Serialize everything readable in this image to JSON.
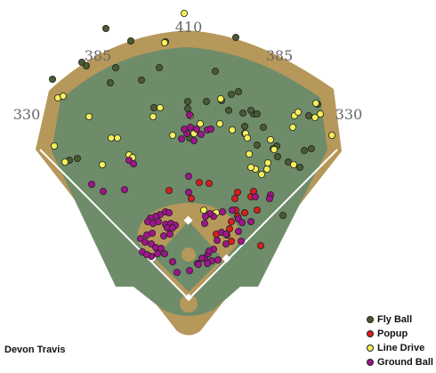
{
  "player_name": "Devon Travis",
  "chart_data": {
    "type": "scatter",
    "title": "",
    "distances": {
      "left_line": "330",
      "left_center": "385",
      "center": "410",
      "right_center": "385",
      "right_line": "330"
    },
    "legend_placement": "bottom-right",
    "series": [
      {
        "name": "Fly Ball",
        "color": "#4a5a32",
        "points": [
          [
            119,
            32
          ],
          [
            147,
            46
          ],
          [
            186,
            47
          ],
          [
            265,
            42
          ],
          [
            92,
            70
          ],
          [
            97,
            74
          ],
          [
            130,
            76
          ],
          [
            179,
            76
          ],
          [
            59,
            89
          ],
          [
            124,
            93
          ],
          [
            159,
            90
          ],
          [
            242,
            80
          ],
          [
            173,
            121
          ],
          [
            211,
            122
          ],
          [
            268,
            103
          ],
          [
            285,
            128
          ],
          [
            282,
            124
          ],
          [
            289,
            128
          ],
          [
            273,
            127
          ],
          [
            249,
            113
          ],
          [
            232,
            114
          ],
          [
            296,
            143
          ],
          [
            257,
            124
          ],
          [
            275,
            142
          ],
          [
            213,
            155
          ],
          [
            289,
            163
          ],
          [
            311,
            164
          ],
          [
            312,
            176
          ],
          [
            324,
            182
          ],
          [
            337,
            188
          ],
          [
            342,
            169
          ],
          [
            350,
            167
          ],
          [
            357,
            117
          ],
          [
            347,
            130
          ],
          [
            87,
            178
          ],
          [
            78,
            180
          ],
          [
            318,
            242
          ],
          [
            260,
            106
          ],
          [
            211,
            114
          ],
          [
            307,
            167
          ],
          [
            275,
            150
          ]
        ]
      },
      {
        "name": "Popup",
        "color": "#d81e1e",
        "points": [
          [
            235,
            206
          ],
          [
            224,
            205
          ],
          [
            190,
            214
          ],
          [
            215,
            223
          ],
          [
            267,
            216
          ],
          [
            264,
            223
          ],
          [
            282,
            221
          ],
          [
            285,
            215
          ],
          [
            289,
            236
          ],
          [
            275,
            239
          ],
          [
            265,
            236
          ],
          [
            267,
            243
          ],
          [
            260,
            249
          ],
          [
            258,
            257
          ],
          [
            255,
            264
          ],
          [
            293,
            276
          ],
          [
            243,
            263
          ],
          [
            260,
            271
          ]
        ]
      },
      {
        "name": "Line Drive",
        "color": "#f5f05a",
        "points": [
          [
            207,
            15
          ],
          [
            185,
            48
          ],
          [
            65,
            110
          ],
          [
            71,
            108
          ],
          [
            100,
            131
          ],
          [
            125,
            155
          ],
          [
            132,
            155
          ],
          [
            172,
            131
          ],
          [
            180,
            121
          ],
          [
            194,
            152
          ],
          [
            214,
            130
          ],
          [
            225,
            139
          ],
          [
            247,
            139
          ],
          [
            248,
            111
          ],
          [
            261,
            146
          ],
          [
            218,
            150
          ],
          [
            331,
            130
          ],
          [
            329,
            143
          ],
          [
            335,
            126
          ],
          [
            354,
            132
          ],
          [
            360,
            128
          ],
          [
            373,
            152
          ],
          [
            355,
            116
          ],
          [
            61,
            164
          ],
          [
            73,
            182
          ],
          [
            115,
            185
          ],
          [
            145,
            174
          ],
          [
            149,
            177
          ],
          [
            304,
            157
          ],
          [
            308,
            168
          ],
          [
            280,
            173
          ],
          [
            294,
            196
          ],
          [
            301,
            183
          ],
          [
            300,
            190
          ],
          [
            287,
            190
          ],
          [
            282,
            188
          ],
          [
            330,
            185
          ],
          [
            243,
            239
          ],
          [
            229,
            236
          ],
          [
            276,
            150
          ],
          [
            278,
            155
          ]
        ]
      },
      {
        "name": "Ground Ball",
        "color": "#a0148c",
        "points": [
          [
            213,
            129
          ],
          [
            214,
            143
          ],
          [
            221,
            145
          ],
          [
            226,
            151
          ],
          [
            233,
            146
          ],
          [
            237,
            145
          ],
          [
            218,
            158
          ],
          [
            204,
            156
          ],
          [
            210,
            150
          ],
          [
            207,
            145
          ],
          [
            145,
            180
          ],
          [
            150,
            184
          ],
          [
            103,
            207
          ],
          [
            116,
            215
          ],
          [
            140,
            213
          ],
          [
            180,
            241
          ],
          [
            186,
            238
          ],
          [
            190,
            239
          ],
          [
            175,
            243
          ],
          [
            169,
            245
          ],
          [
            166,
            249
          ],
          [
            172,
            251
          ],
          [
            178,
            249
          ],
          [
            186,
            252
          ],
          [
            192,
            251
          ],
          [
            197,
            253
          ],
          [
            188,
            256
          ],
          [
            194,
            256
          ],
          [
            191,
            263
          ],
          [
            184,
            265
          ],
          [
            171,
            262
          ],
          [
            165,
            264
          ],
          [
            158,
            268
          ],
          [
            163,
            272
          ],
          [
            170,
            274
          ],
          [
            175,
            278
          ],
          [
            181,
            279
          ],
          [
            185,
            285
          ],
          [
            177,
            285
          ],
          [
            170,
            288
          ],
          [
            194,
            294
          ],
          [
            199,
            306
          ],
          [
            213,
            304
          ],
          [
            222,
            296
          ],
          [
            230,
            290
          ],
          [
            238,
            293
          ],
          [
            245,
            292
          ],
          [
            240,
            280
          ],
          [
            234,
            285
          ],
          [
            235,
            282
          ],
          [
            244,
            270
          ],
          [
            254,
            274
          ],
          [
            268,
            246
          ],
          [
            261,
            236
          ],
          [
            240,
            243
          ],
          [
            236,
            240
          ],
          [
            250,
            238
          ],
          [
            282,
            249
          ],
          [
            272,
            250
          ],
          [
            287,
            221
          ],
          [
            304,
            219
          ],
          [
            303,
            223
          ],
          [
            212,
            198
          ],
          [
            212,
            216
          ],
          [
            231,
            243
          ],
          [
            230,
            251
          ],
          [
            249,
            261
          ],
          [
            254,
            263
          ],
          [
            160,
            283
          ],
          [
            165,
            286
          ],
          [
            223,
            297
          ],
          [
            227,
            290
          ],
          [
            233,
            296
          ],
          [
            268,
            260
          ],
          [
            271,
            271
          ]
        ]
      }
    ]
  }
}
